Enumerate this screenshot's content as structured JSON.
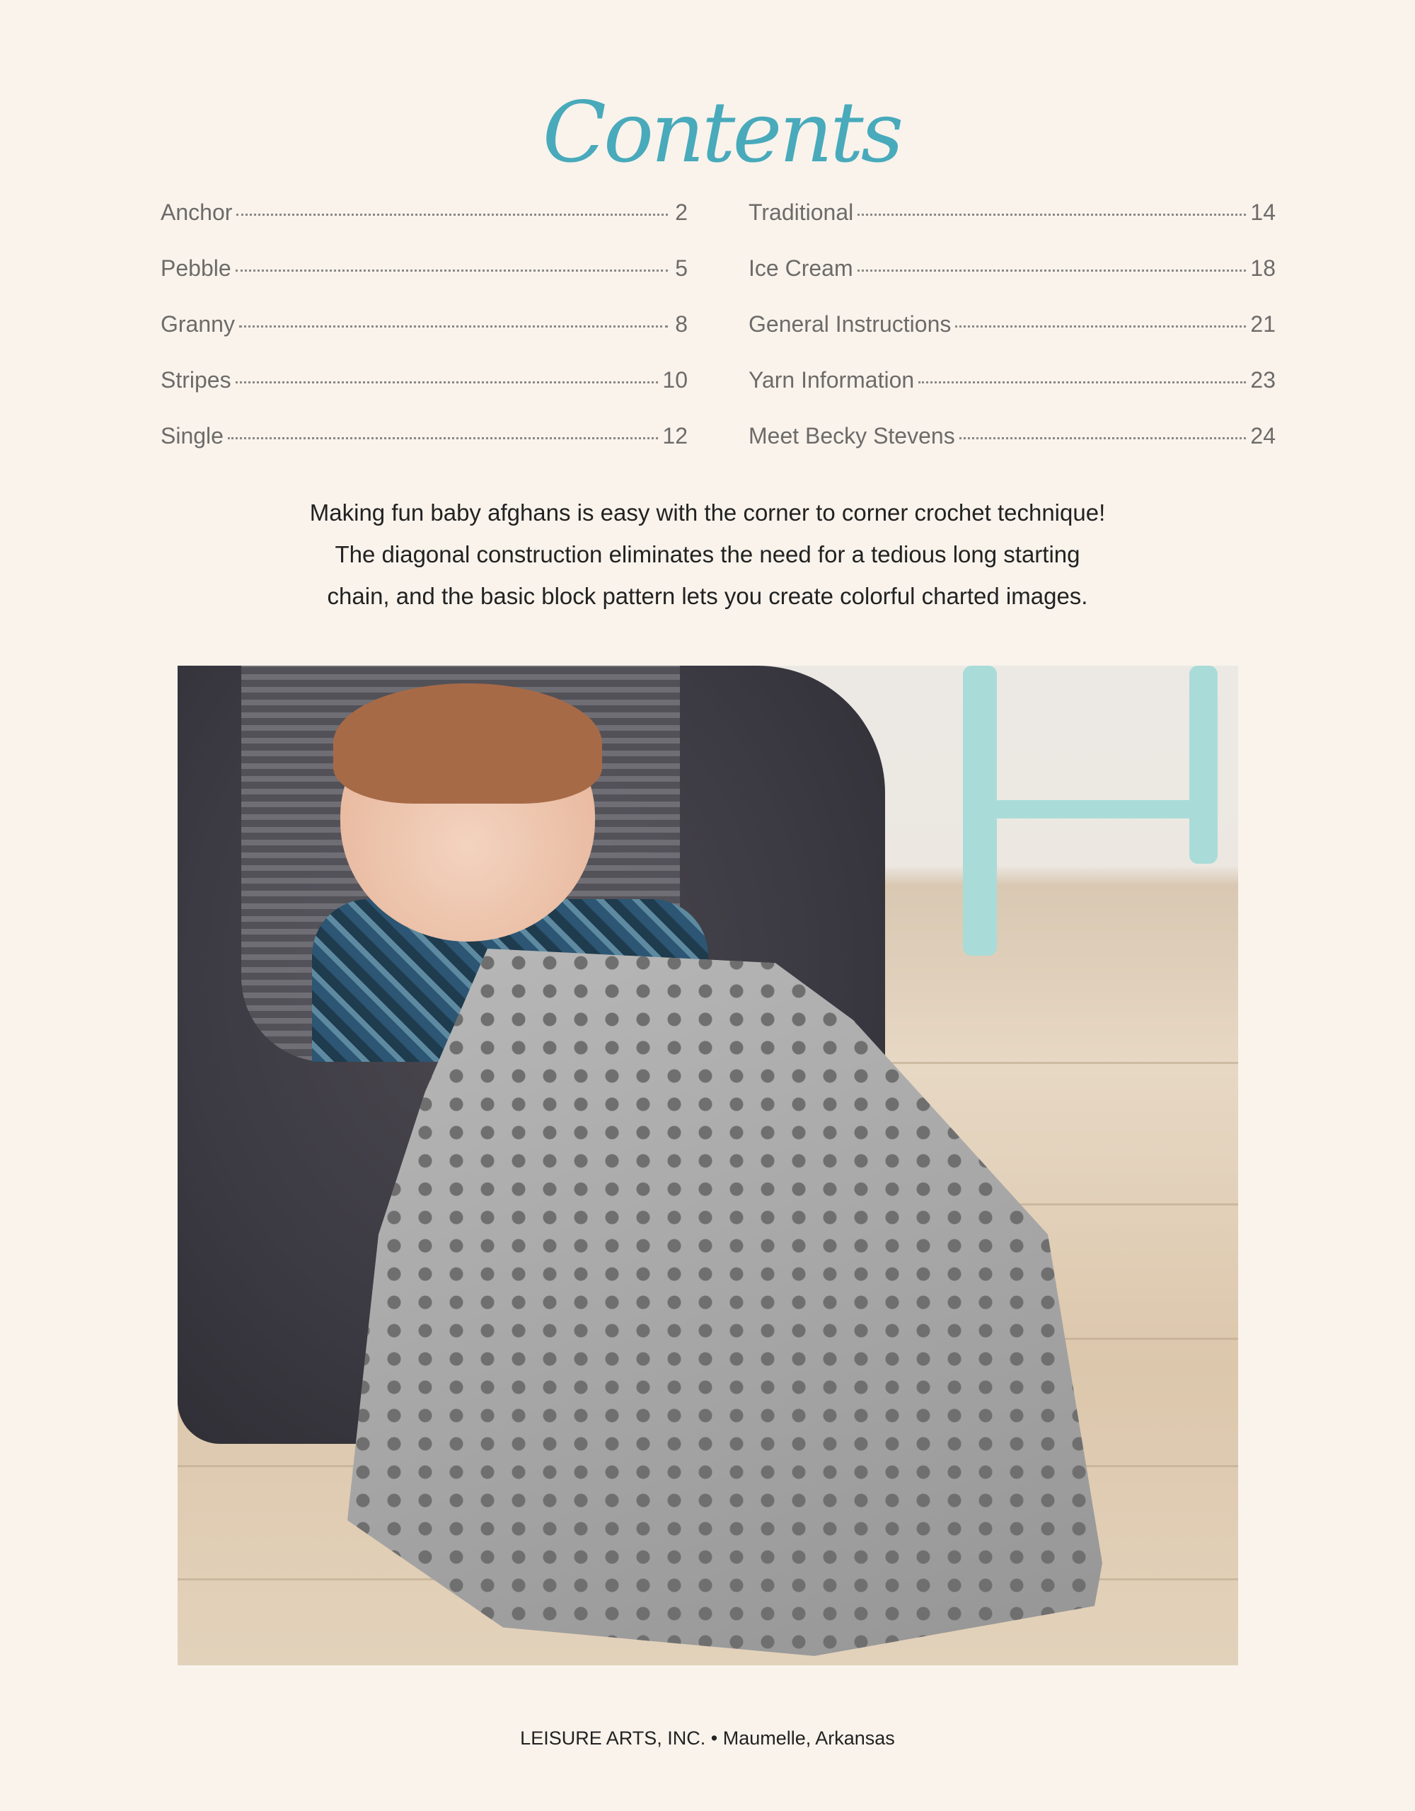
{
  "title": "Contents",
  "toc": {
    "left": [
      {
        "label": "Anchor",
        "page": "2"
      },
      {
        "label": "Pebble",
        "page": "5"
      },
      {
        "label": "Granny",
        "page": "8"
      },
      {
        "label": "Stripes",
        "page": "10"
      },
      {
        "label": "Single",
        "page": "12"
      }
    ],
    "right": [
      {
        "label": "Traditional",
        "page": "14"
      },
      {
        "label": "Ice Cream",
        "page": "18"
      },
      {
        "label": "General Instructions",
        "page": "21"
      },
      {
        "label": "Yarn Information",
        "page": "23"
      },
      {
        "label": "Meet Becky Stevens",
        "page": "24"
      }
    ]
  },
  "intro": [
    "Making fun baby afghans is easy with the corner to corner crochet technique!",
    "The diagonal construction eliminates the need for a tedious long starting",
    "chain, and the basic block pattern lets you create colorful charted images."
  ],
  "photo": {
    "subject": "baby in car seat under gray crocheted afghan"
  },
  "footer": "LEISURE ARTS, INC. • Maumelle, Arkansas",
  "colors": {
    "title": "#48aabb",
    "background": "#f9f3ec",
    "toc_text": "#6d6b69"
  }
}
